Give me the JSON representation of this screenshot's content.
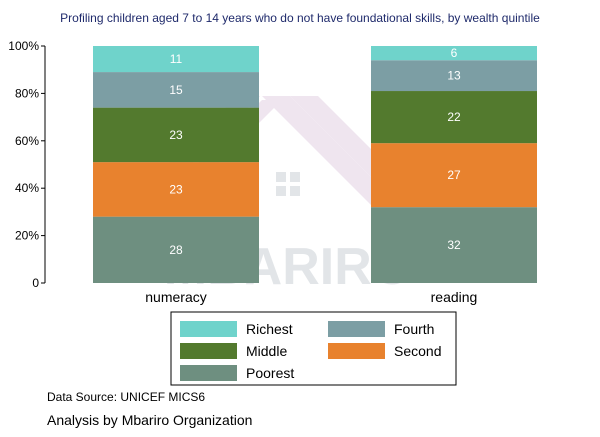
{
  "chart_data": {
    "type": "bar",
    "stacked": true,
    "percent_stacked": true,
    "title": "Profiling children aged 7 to 14 years who do not have foundational skills, by wealth quintile",
    "categories": [
      "numeracy",
      "reading"
    ],
    "yticks": [
      "0",
      "20%",
      "40%",
      "60%",
      "80%",
      "100%"
    ],
    "ylim": [
      0,
      100
    ],
    "grid": false,
    "legend_position": "bottom",
    "series": [
      {
        "name": "Poorest",
        "color": "#6e8f80",
        "values": [
          28,
          32
        ]
      },
      {
        "name": "Second",
        "color": "#e8822e",
        "values": [
          23,
          27
        ]
      },
      {
        "name": "Middle",
        "color": "#537a2e",
        "values": [
          23,
          22
        ]
      },
      {
        "name": "Fourth",
        "color": "#7c9ea4",
        "values": [
          15,
          13
        ]
      },
      {
        "name": "Richest",
        "color": "#6fd3cb",
        "values": [
          11,
          6
        ]
      }
    ]
  },
  "watermark": "MBARIRO",
  "footer": {
    "source": "Data Source: UNICEF MICS6",
    "analysis": "Analysis by Mbariro Organization"
  }
}
